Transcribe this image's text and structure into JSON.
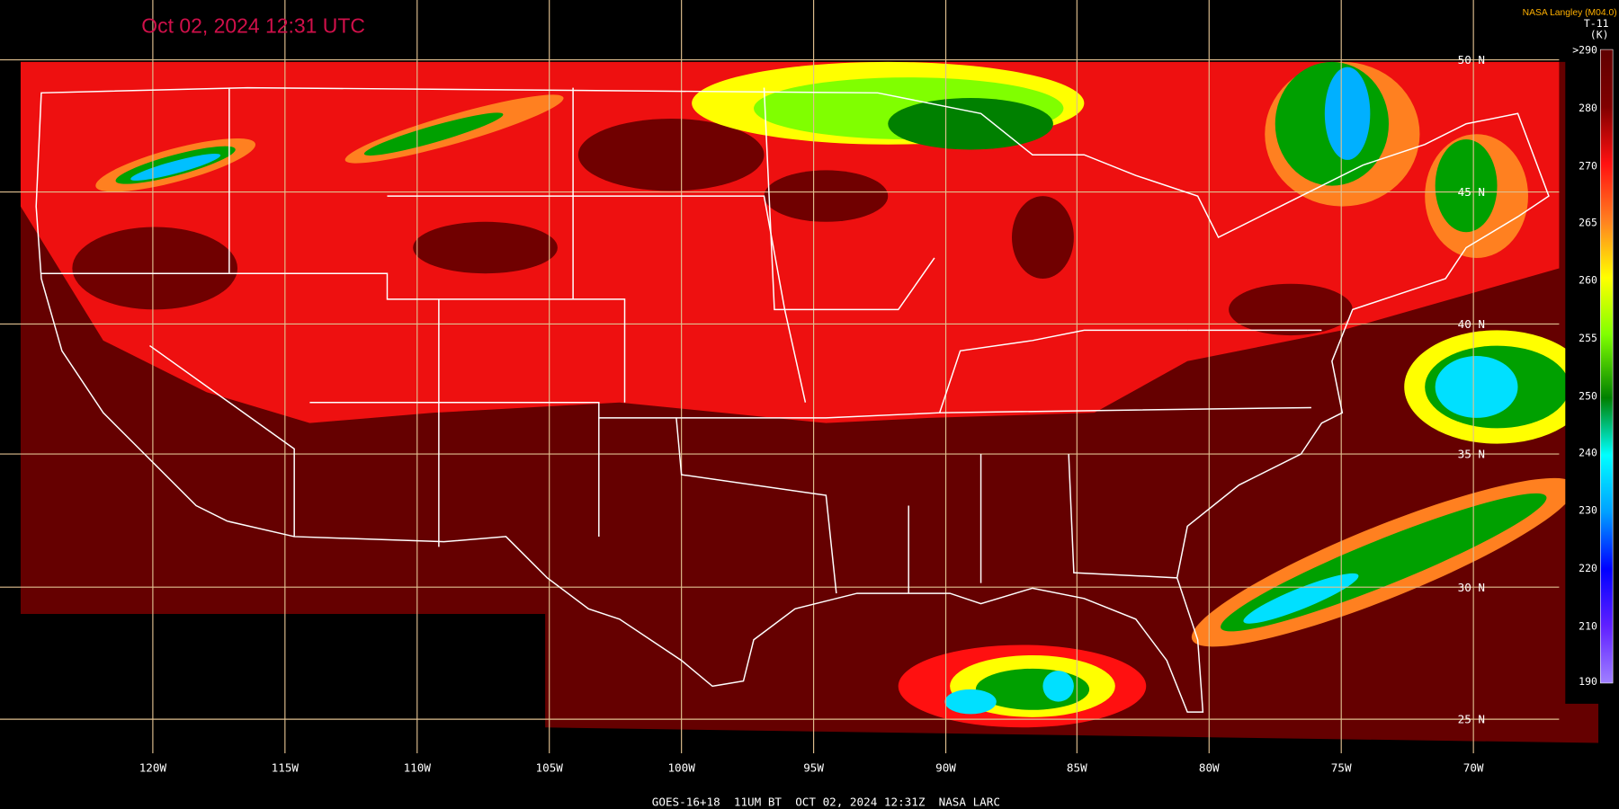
{
  "header": {
    "timestamp": "Oct 02, 2024 12:31 UTC",
    "credit": "NASA Langley (M04.0)"
  },
  "colorbar": {
    "title": "T-11",
    "unit": "(K)",
    "labels": [
      ">290",
      "280",
      "270",
      "265",
      "260",
      "255",
      "250",
      "240",
      "230",
      "220",
      "210",
      "190"
    ]
  },
  "latitude_labels": [
    "50 N",
    "45 N",
    "40 N",
    "35 N",
    "30 N",
    "25 N"
  ],
  "longitude_labels": [
    "120W",
    "115W",
    "110W",
    "105W",
    "100W",
    "95W",
    "90W",
    "85W",
    "80W",
    "75W",
    "70W"
  ],
  "footer": "GOES-16+18  11UM BT  OCT 02, 2024 12:31Z  NASA LARC"
}
